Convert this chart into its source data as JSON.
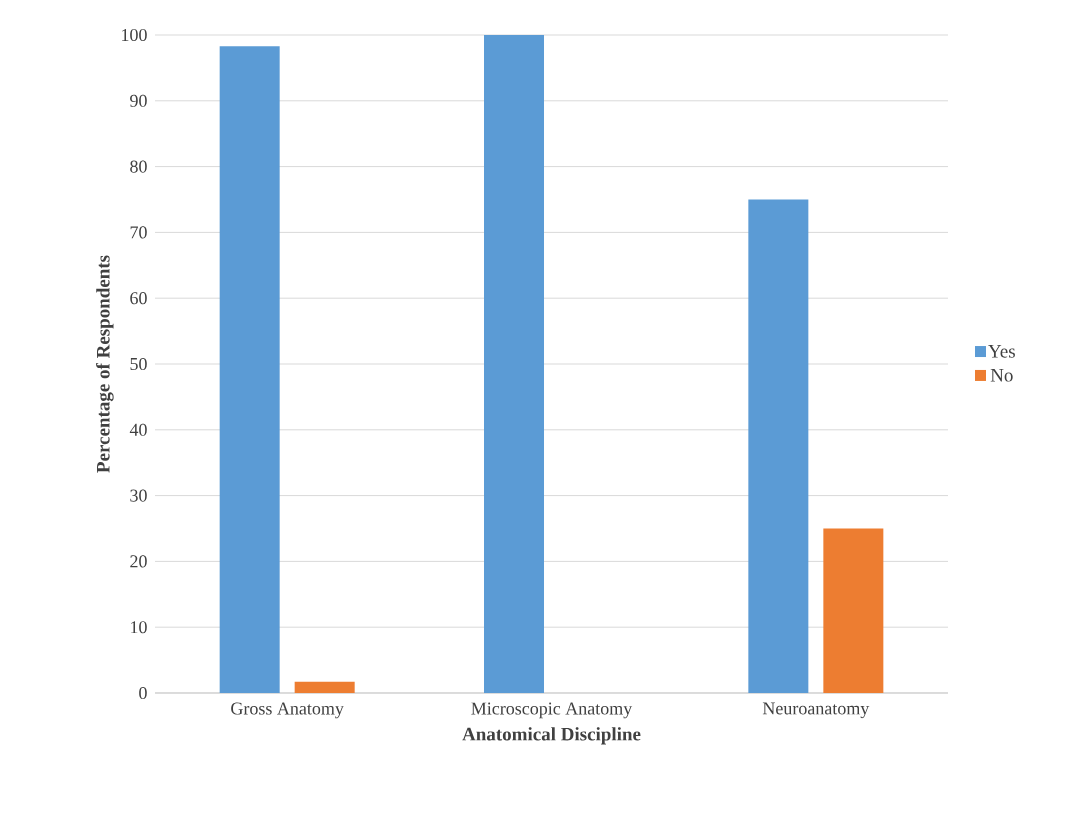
{
  "chart_data": {
    "type": "bar",
    "xlabel": "Anatomical Discipline",
    "ylabel": "Percentage of Respondents",
    "categories": [
      "Gross Anatomy",
      "Microscopic Anatomy",
      "Neuroanatomy"
    ],
    "series": [
      {
        "name": "Yes",
        "color": "#5b9bd5",
        "values": [
          98.3,
          100,
          75
        ]
      },
      {
        "name": "No",
        "color": "#ed7d31",
        "values": [
          1.7,
          0,
          25
        ]
      }
    ],
    "ylim": [
      0,
      100
    ],
    "yticks": [
      0,
      10,
      20,
      30,
      40,
      50,
      60,
      70,
      80,
      90,
      100
    ],
    "grid": "y",
    "legend": "right"
  }
}
